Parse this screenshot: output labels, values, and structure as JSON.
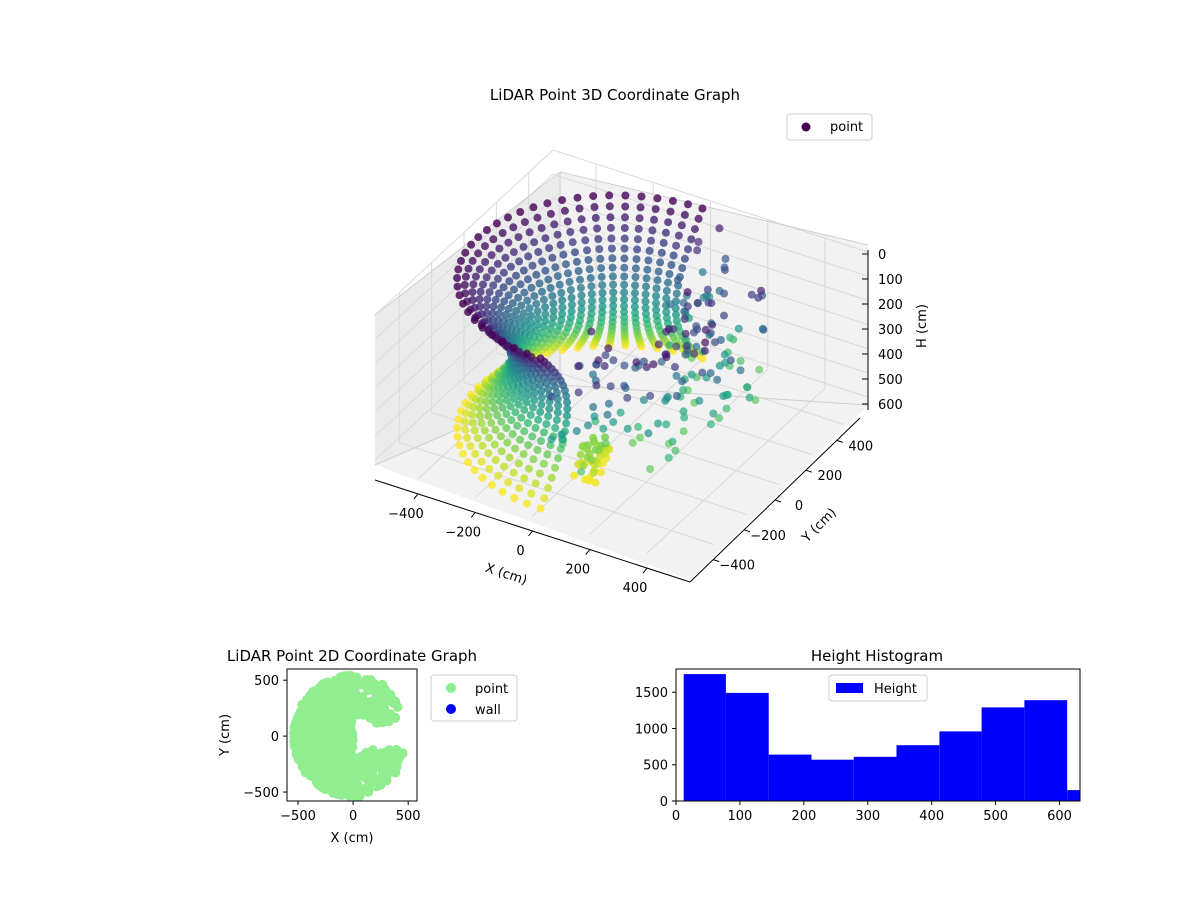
{
  "chart_data": [
    {
      "type": "scatter",
      "dimensions": 3,
      "title": "LiDAR Point 3D Coordinate Graph",
      "xlabel": "X (cm)",
      "ylabel": "Y (cm)",
      "zlabel": "H (cm)",
      "xlim": [
        -550,
        550
      ],
      "ylim": [
        -550,
        550
      ],
      "zlim": [
        0,
        620
      ],
      "zaxis_inverted": true,
      "xticks": [
        "−400",
        "−200",
        "0",
        "200",
        "400"
      ],
      "yticks": [
        "−400",
        "−200",
        "0",
        "200",
        "400"
      ],
      "zticks": [
        "0",
        "100",
        "200",
        "300",
        "400",
        "500",
        "600"
      ],
      "grid": true,
      "colormap": "viridis",
      "legend": {
        "position": "top-right",
        "entries": [
          {
            "label": "point",
            "color": "#440154"
          }
        ]
      },
      "series": [
        {
          "name": "point",
          "shape": "half-torus shell",
          "radius_range": [
            200,
            500
          ],
          "height_range": [
            0,
            620
          ]
        }
      ]
    },
    {
      "type": "scatter",
      "title": "LiDAR Point 2D Coordinate Graph",
      "xlabel": "X (cm)",
      "ylabel": "Y (cm)",
      "xlim": [
        -600,
        580
      ],
      "ylim": [
        -580,
        600
      ],
      "xticks": [
        "−500",
        "0",
        "500"
      ],
      "yticks": [
        "500",
        "0",
        "−500"
      ],
      "legend": {
        "position": "outside-right",
        "entries": [
          {
            "label": "point",
            "color": "#90ee90"
          },
          {
            "label": "wall",
            "color": "#0000ff"
          }
        ]
      },
      "series": [
        {
          "name": "point",
          "color": "#90ee90",
          "region": "left half-disc plus fringe",
          "x_range": [
            -540,
            550
          ],
          "y_range": [
            -560,
            560
          ]
        },
        {
          "name": "wall",
          "color": "#0000ff",
          "count": 0
        }
      ]
    },
    {
      "type": "bar",
      "subtype": "histogram",
      "title": "Height Histogram",
      "xlim": [
        0,
        632
      ],
      "ylim": [
        0,
        1820
      ],
      "xticks": [
        "0",
        "100",
        "200",
        "300",
        "400",
        "500",
        "600"
      ],
      "yticks": [
        "0",
        "500",
        "1000",
        "1500"
      ],
      "color": "#0000ff",
      "legend": {
        "position": "top-center",
        "entries": [
          {
            "label": "Height",
            "color": "#0000ff"
          }
        ]
      },
      "bins": [
        {
          "start": 12,
          "end": 78,
          "count": 1750
        },
        {
          "start": 78,
          "end": 145,
          "count": 1490
        },
        {
          "start": 145,
          "end": 212,
          "count": 640
        },
        {
          "start": 212,
          "end": 278,
          "count": 570
        },
        {
          "start": 278,
          "end": 345,
          "count": 610
        },
        {
          "start": 345,
          "end": 412,
          "count": 770
        },
        {
          "start": 412,
          "end": 478,
          "count": 960
        },
        {
          "start": 478,
          "end": 545,
          "count": 1290
        },
        {
          "start": 545,
          "end": 612,
          "count": 1390
        },
        {
          "start": 612,
          "end": 680,
          "count": 150
        }
      ]
    }
  ]
}
